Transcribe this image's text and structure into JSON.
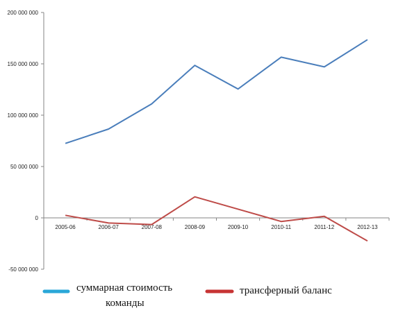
{
  "chart_data": {
    "type": "line",
    "categories": [
      "2005-06",
      "2006-07",
      "2007-08",
      "2008-09",
      "2009-10",
      "2010-11",
      "2011-12",
      "2012-13"
    ],
    "series": [
      {
        "name": "суммарная стоимость команды",
        "color": "#4a7ebb",
        "legend_color": "#2aa7d8",
        "values": [
          72500000,
          86500000,
          111000000,
          148500000,
          125500000,
          156500000,
          147000000,
          173500000
        ]
      },
      {
        "name": "трансферный баланс",
        "color": "#be4b48",
        "legend_color": "#c73434",
        "values": [
          2500000,
          -5000000,
          -6500000,
          20500000,
          8500000,
          -3500000,
          1500000,
          -22500000
        ]
      }
    ],
    "ylim": [
      -50000000,
      200000000
    ],
    "ytick_values": [
      200000000,
      150000000,
      100000000,
      50000000,
      0,
      -50000000
    ],
    "ytick_labels": [
      "200 000 000",
      "150 000 000",
      "100 000 000",
      "50 000 000",
      "0",
      "-50 000 000"
    ],
    "grid": false,
    "legend_position": "bottom"
  },
  "legend": {
    "item1_line1": "суммарная стоимость",
    "item1_line2": "команды",
    "item2": "трансферный баланс"
  }
}
